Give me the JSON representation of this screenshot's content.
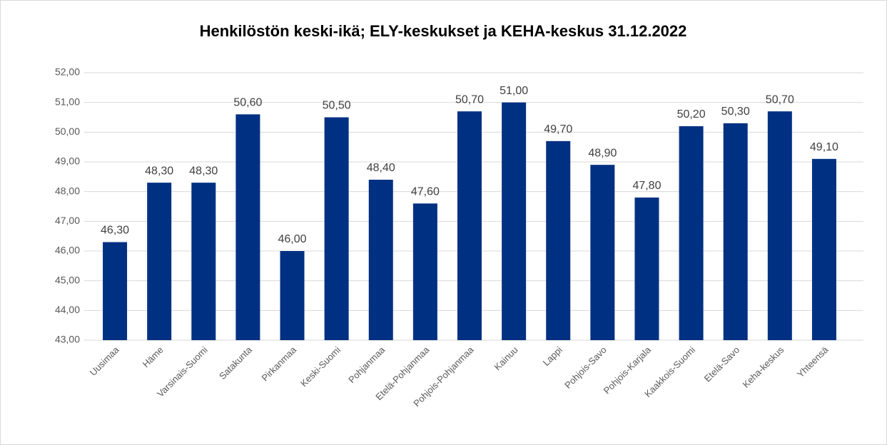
{
  "chart_data": {
    "type": "bar",
    "title": "Henkilöstön keski-ikä; ELY-keskukset ja KEHA-keskus 31.12.2022",
    "categories": [
      "Uusimaa",
      "Häme",
      "Varsinais-Suomi",
      "Satakunta",
      "Pirkanmaa",
      "Keski-Suomi",
      "Pohjanmaa",
      "Etelä-Pohjanmaa",
      "Pohjois-Pohjanmaa",
      "Kainuu",
      "Lappi",
      "Pohjois-Savo",
      "Pohjois-Karjala",
      "Kaakkois-Suomi",
      "Etelä-Savo",
      "Keha-keskus",
      "Yhteensä"
    ],
    "values": [
      46.3,
      48.3,
      48.3,
      50.6,
      46.0,
      50.5,
      48.4,
      47.6,
      50.7,
      51.0,
      49.7,
      48.9,
      47.8,
      50.2,
      50.3,
      50.7,
      49.1
    ],
    "value_labels": [
      "46,30",
      "48,30",
      "48,30",
      "50,60",
      "46,00",
      "50,50",
      "48,40",
      "47,60",
      "50,70",
      "51,00",
      "49,70",
      "48,90",
      "47,80",
      "50,20",
      "50,30",
      "50,70",
      "49,10"
    ],
    "color": "#003082",
    "ylim": [
      43,
      52
    ],
    "yticks": [
      {
        "value": 43,
        "label": "43,00"
      },
      {
        "value": 44,
        "label": "44,00"
      },
      {
        "value": 45,
        "label": "45,00"
      },
      {
        "value": 46,
        "label": "46,00"
      },
      {
        "value": 47,
        "label": "47,00"
      },
      {
        "value": 48,
        "label": "48,00"
      },
      {
        "value": 49,
        "label": "49,00"
      },
      {
        "value": 50,
        "label": "50,00"
      },
      {
        "value": 51,
        "label": "51,00"
      },
      {
        "value": 52,
        "label": "52,00"
      }
    ],
    "grid": true
  }
}
